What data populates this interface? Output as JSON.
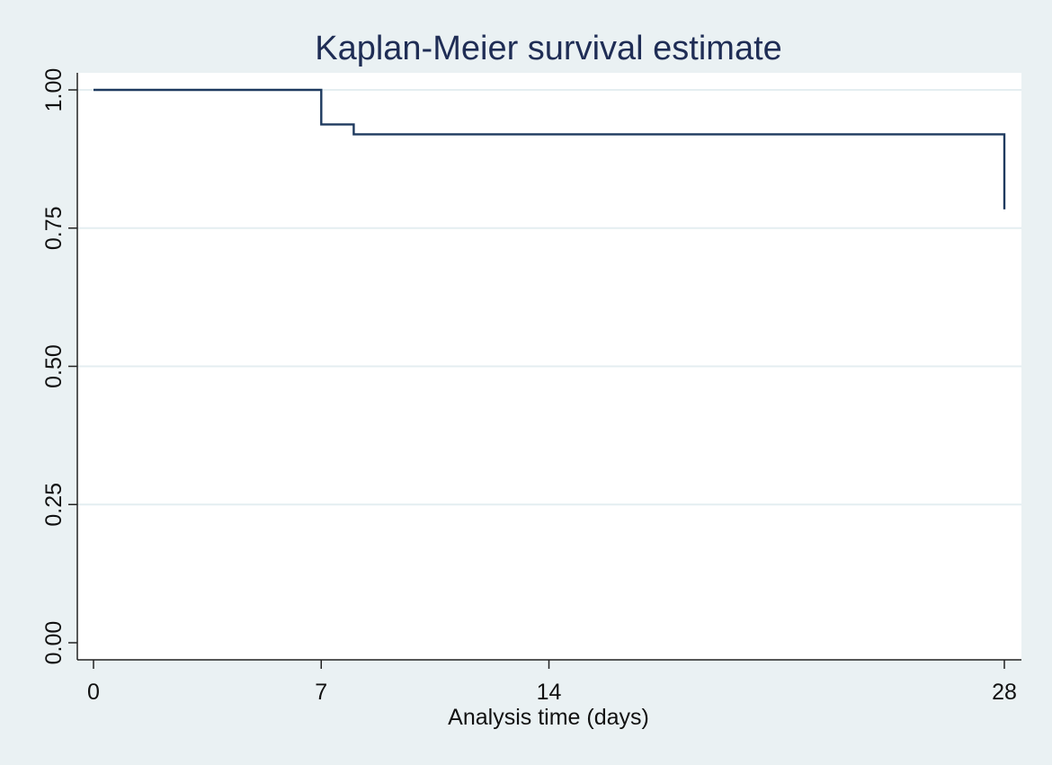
{
  "chart_data": {
    "type": "line",
    "title": "Kaplan-Meier survival estimate",
    "xlabel": "Analysis time (days)",
    "ylabel": "",
    "xlim": [
      0,
      28
    ],
    "ylim": [
      0,
      1
    ],
    "x_ticks": [
      0,
      7,
      14,
      28
    ],
    "x_tick_labels": [
      "0",
      "7",
      "14",
      "28"
    ],
    "y_ticks": [
      0,
      0.25,
      0.5,
      0.75,
      1
    ],
    "y_tick_labels": [
      "0.00",
      "0.25",
      "0.50",
      "0.75",
      "1.00"
    ],
    "grid": true,
    "legend": "none",
    "step": true,
    "series": [
      {
        "x": [
          0,
          7,
          7,
          8,
          8,
          28,
          28
        ],
        "y": [
          1.0,
          1.0,
          0.9375,
          0.9375,
          0.9196,
          0.9196,
          0.7839
        ]
      }
    ],
    "colors": {
      "background": "#eaf1f3",
      "plot_area": "#ffffff",
      "grid": "#e4eef1",
      "line": "#1e3a5f",
      "axis": "#222222",
      "title": "#1f2d55"
    }
  }
}
